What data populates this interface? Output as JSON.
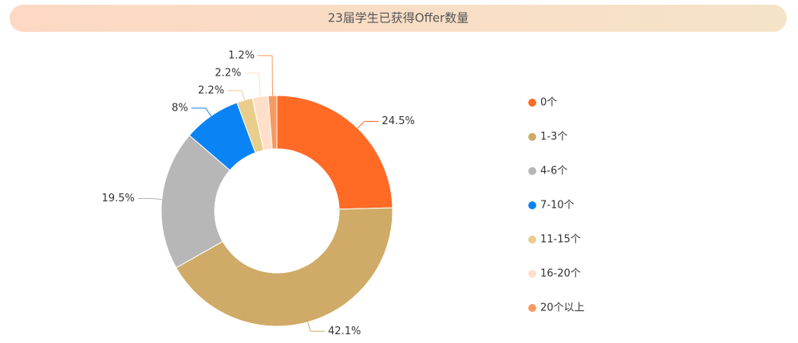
{
  "chart_data": {
    "type": "donut",
    "title": "23届学生已获得Offer数量",
    "categories": [
      "0个",
      "1-3个",
      "4-6个",
      "7-10个",
      "11-15个",
      "16-20个",
      "20个以上"
    ],
    "values": [
      24.5,
      42.1,
      19.5,
      8,
      2.2,
      2.2,
      1.2
    ],
    "value_labels": [
      "24.5%",
      "42.1%",
      "19.5%",
      "8%",
      "2.2%",
      "2.2%",
      "1.2%"
    ],
    "colors": [
      "#ff6a25",
      "#cfab67",
      "#b7b7b7",
      "#0a84f5",
      "#e8cd8c",
      "#ffdfc9",
      "#f79a62"
    ],
    "legend": "right"
  }
}
